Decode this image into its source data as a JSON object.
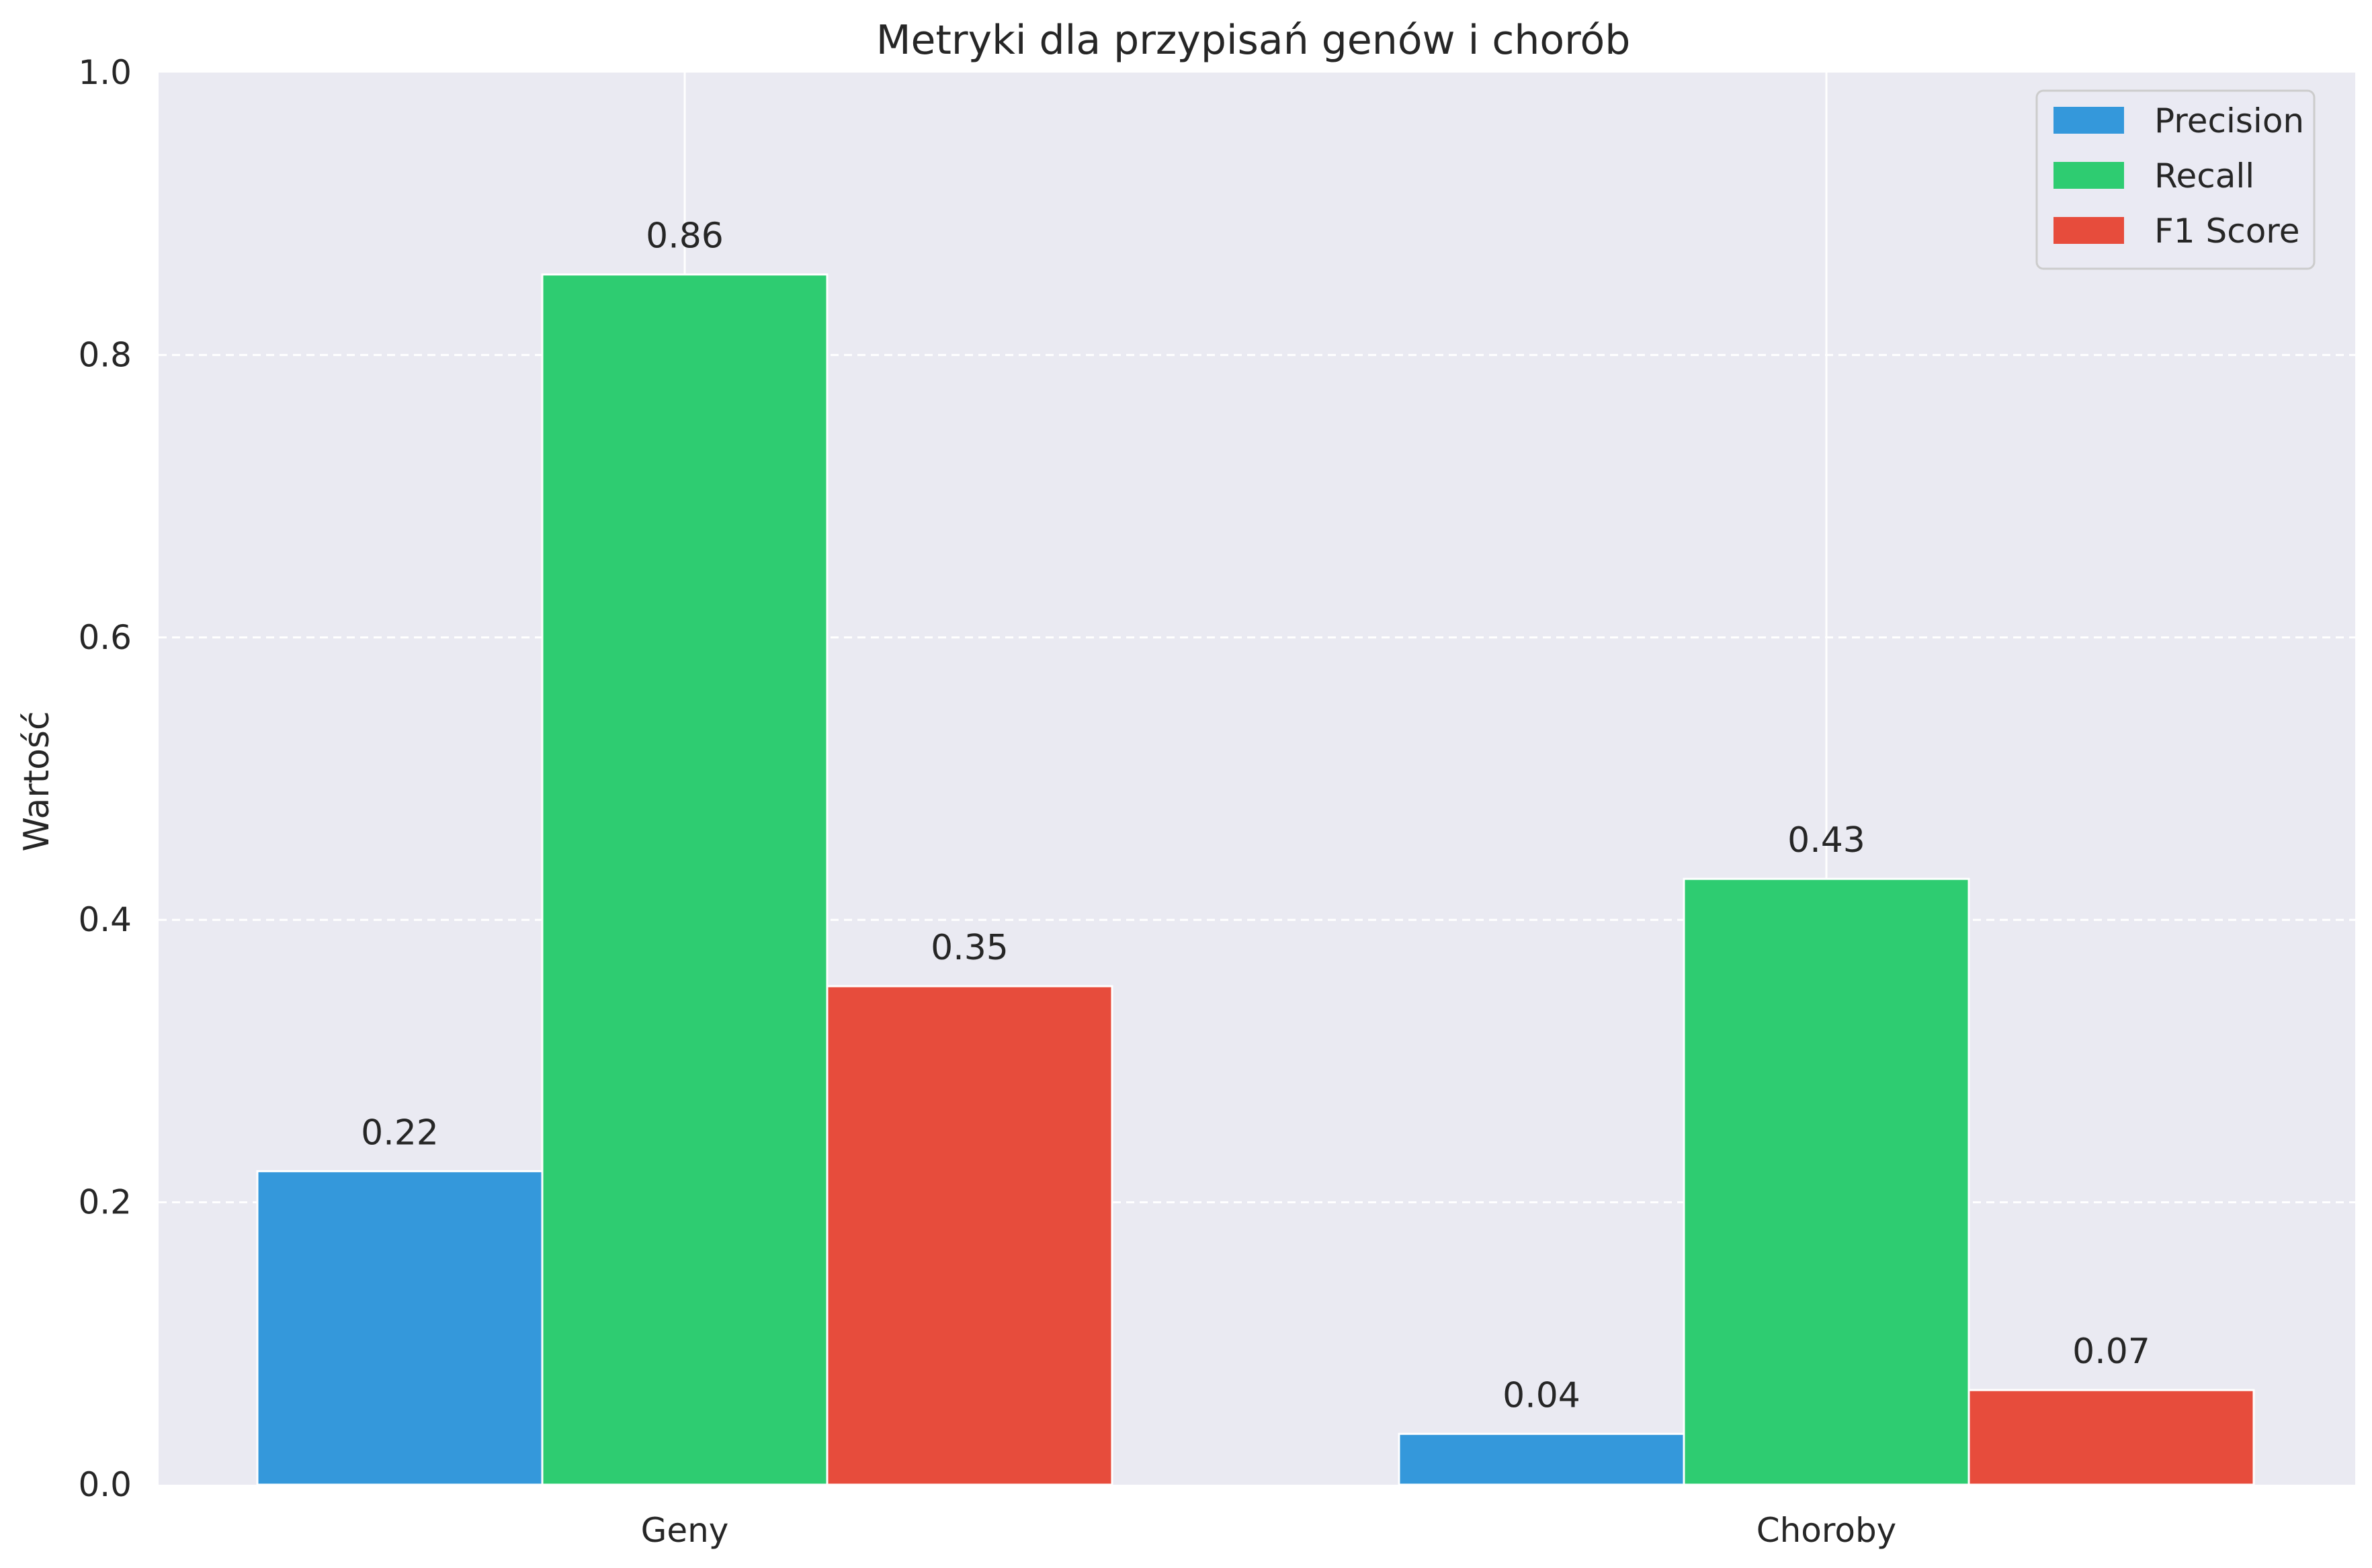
{
  "colors": {
    "background": "#ffffff",
    "plot_background": "#eaeaf2",
    "grid": "#ffffff",
    "text": "#262626"
  },
  "chart_data": {
    "type": "bar",
    "title": "Metryki dla przypisań genów i chorób",
    "xlabel": "",
    "ylabel": "Wartość",
    "categories": [
      "Geny",
      "Choroby"
    ],
    "series": [
      {
        "name": "Precision",
        "color": "#3498db",
        "values": [
          0.222,
          0.036
        ],
        "labels": [
          "0.22",
          "0.04"
        ]
      },
      {
        "name": "Recall",
        "color": "#2ecc71",
        "values": [
          0.857,
          0.429
        ],
        "labels": [
          "0.86",
          "0.43"
        ]
      },
      {
        "name": "F1 Score",
        "color": "#e74c3c",
        "values": [
          0.353,
          0.067
        ],
        "labels": [
          "0.35",
          "0.07"
        ]
      }
    ],
    "ylim": [
      0,
      1.0
    ],
    "yticks": [
      0.0,
      0.2,
      0.4,
      0.6,
      0.8,
      1.0
    ],
    "ytick_labels": [
      "0.0",
      "0.2",
      "0.4",
      "0.6",
      "0.8",
      "1.0"
    ],
    "grid": true,
    "legend_position": "top-right"
  }
}
